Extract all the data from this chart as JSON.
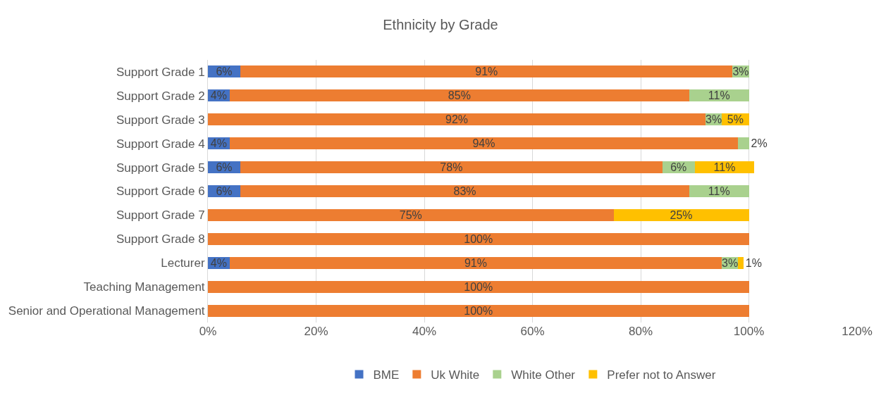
{
  "chart_data": {
    "type": "bar",
    "orientation": "horizontal",
    "stacked": true,
    "title": "Ethnicity by Grade",
    "categories": [
      "Support Grade 1",
      "Support Grade 2",
      "Support Grade 3",
      "Support Grade 4",
      "Support Grade 5",
      "Support Grade 6",
      "Support Grade 7",
      "Support Grade 8",
      "Lecturer",
      "Teaching Management",
      "Senior and Operational Management"
    ],
    "series": [
      {
        "name": "BME",
        "color": "#4472c4",
        "values": [
          6,
          4,
          null,
          4,
          6,
          6,
          null,
          null,
          4,
          null,
          null
        ],
        "value_labels": [
          "6%",
          "4%",
          null,
          "4%",
          "6%",
          "6%",
          null,
          null,
          "4%",
          null,
          null
        ]
      },
      {
        "name": "Uk White",
        "color": "#ed7d31",
        "values": [
          91,
          85,
          92,
          94,
          78,
          83,
          75,
          100,
          91,
          100,
          100
        ],
        "value_labels": [
          "91%",
          "85%",
          "92%",
          "94%",
          "78%",
          "83%",
          "75%",
          "100%",
          "91%",
          "100%",
          "100%"
        ]
      },
      {
        "name": "White Other",
        "color": "#a9d18e",
        "values": [
          3,
          11,
          3,
          2,
          6,
          11,
          null,
          null,
          3,
          null,
          null
        ],
        "value_labels": [
          "3%",
          "11%",
          "3%",
          "2%",
          "6%",
          "11%",
          null,
          null,
          "3%",
          null,
          null
        ]
      },
      {
        "name": "Prefer not to Answer",
        "color": "#ffc000",
        "values": [
          null,
          null,
          5,
          null,
          11,
          null,
          25,
          null,
          1,
          null,
          null
        ],
        "value_labels": [
          null,
          null,
          "5%",
          null,
          "11%",
          null,
          "25%",
          null,
          "1%",
          null,
          null
        ]
      }
    ],
    "xlim": [
      0,
      120
    ],
    "xticks": [
      {
        "value": 0,
        "label": "0%"
      },
      {
        "value": 20,
        "label": "20%"
      },
      {
        "value": 40,
        "label": "40%"
      },
      {
        "value": 60,
        "label": "60%"
      },
      {
        "value": 80,
        "label": "80%"
      },
      {
        "value": 100,
        "label": "100%"
      },
      {
        "value": 120,
        "label": "120%"
      }
    ],
    "grid": "x",
    "legend": "bottom"
  }
}
